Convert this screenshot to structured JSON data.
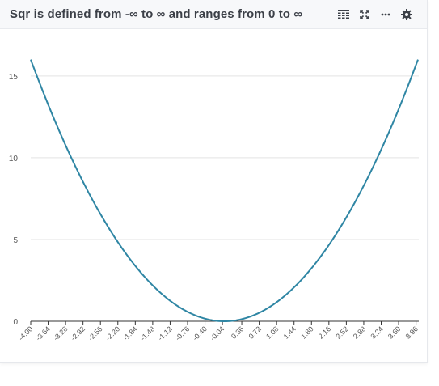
{
  "header": {
    "title": "Sqr is defined from -∞ to ∞ and ranges from 0 to ∞",
    "tools": [
      {
        "icon": "table-icon"
      },
      {
        "icon": "expand-icon"
      },
      {
        "icon": "more-icon"
      },
      {
        "icon": "gear-icon"
      }
    ]
  },
  "colors": {
    "line": "#2f86a4",
    "grid": "#e3e3e3",
    "axis": "#333333",
    "title": "#3b3f47"
  },
  "chart_data": {
    "type": "line",
    "title": "Sqr is defined from -∞ to ∞ and ranges from 0 to ∞",
    "xlabel": "",
    "ylabel": "",
    "function": "x^2",
    "xlim": [
      -4.0,
      4.0
    ],
    "ylim": [
      0,
      16
    ],
    "grid": true,
    "yticks": [
      "0",
      "5",
      "10",
      "15"
    ],
    "xticks": [
      "-4.00",
      "-3.64",
      "-3.28",
      "-2.92",
      "-2.56",
      "-2.20",
      "-1.84",
      "-1.48",
      "-1.12",
      "-0.76",
      "-0.40",
      "-0.04",
      "0.36",
      "0.72",
      "1.08",
      "1.44",
      "1.80",
      "2.16",
      "2.52",
      "2.88",
      "3.24",
      "3.60",
      "3.96"
    ]
  }
}
